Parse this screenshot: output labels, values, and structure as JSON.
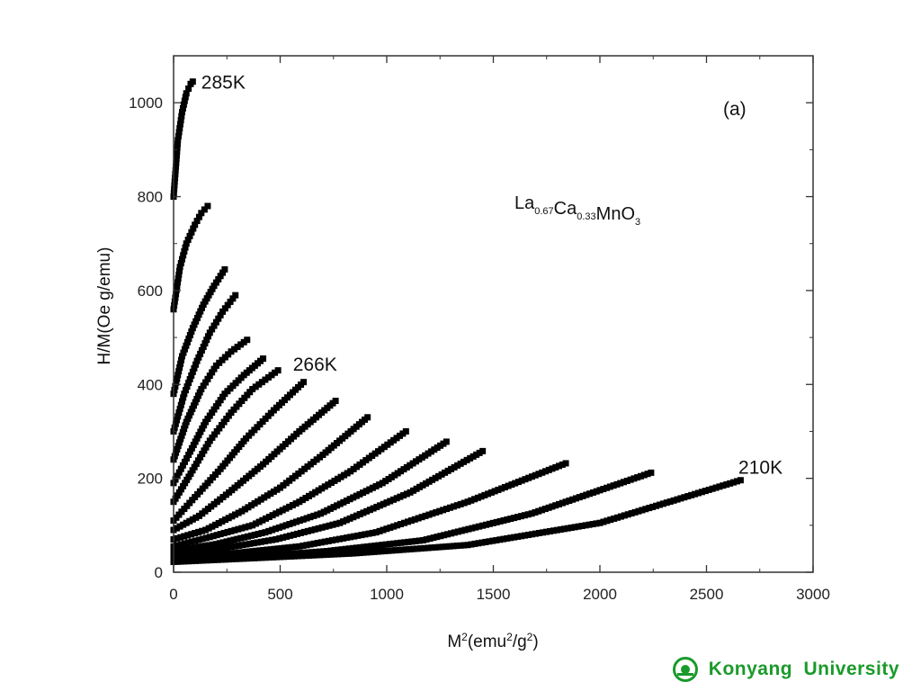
{
  "chart_data": {
    "type": "scatter",
    "title": "",
    "panel_label": "(a)",
    "formula": {
      "parts": [
        {
          "text": "La",
          "sub": "0.67"
        },
        {
          "text": "Ca",
          "sub": "0.33"
        },
        {
          "text": "MnO",
          "sub": "3"
        }
      ]
    },
    "xlabel": {
      "base": "M",
      "sup1": "2",
      "mid": "(emu",
      "sup2": "2",
      "mid2": "/g",
      "sup3": "2",
      "end": ")"
    },
    "ylabel": "H/M(Oe g/emu)",
    "xlim": [
      0,
      3000
    ],
    "ylim": [
      0,
      1100
    ],
    "xticks": [
      0,
      500,
      1000,
      1500,
      2000,
      2500,
      3000
    ],
    "yticks": [
      0,
      200,
      400,
      600,
      800,
      1000
    ],
    "grid": false,
    "marker": "square",
    "marker_color": "#000000",
    "annotations": [
      {
        "text": "285K",
        "x": 130,
        "y": 1045
      },
      {
        "text": "266K",
        "x": 560,
        "y": 445
      },
      {
        "text": "210K",
        "x": 2650,
        "y": 225
      }
    ],
    "series": [
      {
        "x": [
          0,
          20,
          40,
          60,
          80,
          90
        ],
        "y": [
          800,
          920,
          980,
          1020,
          1040,
          1045
        ]
      },
      {
        "x": [
          0,
          30,
          60,
          100,
          130,
          160
        ],
        "y": [
          560,
          650,
          700,
          740,
          765,
          780
        ]
      },
      {
        "x": [
          0,
          40,
          90,
          140,
          190,
          240
        ],
        "y": [
          380,
          460,
          520,
          570,
          610,
          645
        ]
      },
      {
        "x": [
          0,
          50,
          110,
          170,
          230,
          290
        ],
        "y": [
          300,
          380,
          450,
          510,
          555,
          590
        ]
      },
      {
        "x": [
          0,
          60,
          130,
          200,
          270,
          345
        ],
        "y": [
          240,
          320,
          390,
          440,
          470,
          495
        ]
      },
      {
        "x": [
          0,
          70,
          150,
          240,
          330,
          420
        ],
        "y": [
          190,
          250,
          320,
          380,
          420,
          455
        ]
      },
      {
        "x": [
          0,
          80,
          170,
          270,
          370,
          490
        ],
        "y": [
          150,
          210,
          280,
          340,
          390,
          430
        ]
      },
      {
        "x": [
          0,
          100,
          220,
          340,
          470,
          610
        ],
        "y": [
          110,
          160,
          220,
          285,
          345,
          405
        ]
      },
      {
        "x": [
          0,
          120,
          260,
          420,
          590,
          760
        ],
        "y": [
          90,
          120,
          170,
          230,
          300,
          365
        ]
      },
      {
        "x": [
          0,
          150,
          320,
          500,
          700,
          910
        ],
        "y": [
          70,
          90,
          130,
          180,
          250,
          330
        ]
      },
      {
        "x": [
          0,
          170,
          370,
          590,
          830,
          1090
        ],
        "y": [
          55,
          75,
          100,
          150,
          215,
          300
        ]
      },
      {
        "x": [
          0,
          200,
          430,
          690,
          980,
          1280
        ],
        "y": [
          45,
          60,
          85,
          125,
          190,
          278
        ]
      },
      {
        "x": [
          0,
          220,
          480,
          780,
          1110,
          1450
        ],
        "y": [
          38,
          50,
          70,
          105,
          170,
          258
        ]
      },
      {
        "x": [
          0,
          270,
          590,
          950,
          1380,
          1840
        ],
        "y": [
          30,
          40,
          55,
          85,
          150,
          232
        ]
      },
      {
        "x": [
          0,
          330,
          720,
          1170,
          1680,
          2240
        ],
        "y": [
          25,
          32,
          45,
          68,
          125,
          212
        ]
      },
      {
        "x": [
          0,
          380,
          840,
          1380,
          2000,
          2660
        ],
        "y": [
          22,
          30,
          40,
          58,
          105,
          196
        ]
      }
    ]
  },
  "footer": {
    "brand": "Konyang University",
    "logo_icon": "university-seal-icon",
    "brand_color": "#1a9a2a"
  }
}
